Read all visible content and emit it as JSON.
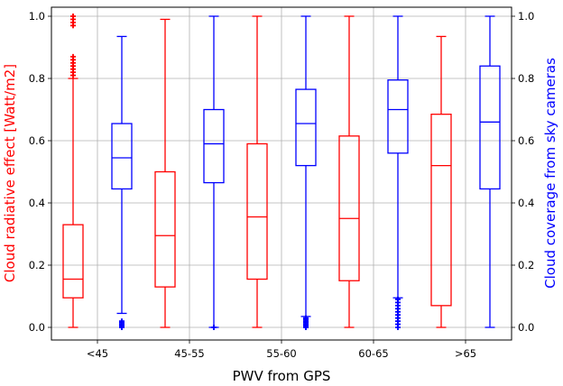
{
  "chart_data": {
    "type": "boxplot",
    "categories": [
      "<45",
      "45-55",
      "55-60",
      "60-65",
      ">65"
    ],
    "xlabel": "PWV from GPS",
    "ylabel_left": "Cloud radiative effect [Watt/m2]",
    "ylabel_right": "Cloud coverage from sky cameras",
    "ylim": [
      0,
      1
    ],
    "yticks": [
      0.0,
      0.2,
      0.4,
      0.6,
      0.8,
      1.0
    ],
    "ytick_labels": [
      "0.0",
      "0.2",
      "0.4",
      "0.6",
      "0.8",
      "1.0"
    ],
    "grid": true,
    "series": [
      {
        "name": "Cloud radiative effect [Watt/m2]",
        "color": "#ff0000",
        "boxes": [
          {
            "whisker_low": 0.0,
            "q1": 0.095,
            "median": 0.155,
            "q3": 0.33,
            "whisker_high": 0.8,
            "outliers": [
              0.81,
              0.82,
              0.83,
              0.84,
              0.85,
              0.86,
              0.87,
              0.97,
              0.98,
              0.99,
              1.0
            ]
          },
          {
            "whisker_low": 0.0,
            "q1": 0.13,
            "median": 0.295,
            "q3": 0.5,
            "whisker_high": 0.99,
            "outliers": []
          },
          {
            "whisker_low": 0.0,
            "q1": 0.155,
            "median": 0.355,
            "q3": 0.59,
            "whisker_high": 1.0,
            "outliers": []
          },
          {
            "whisker_low": 0.0,
            "q1": 0.15,
            "median": 0.35,
            "q3": 0.615,
            "whisker_high": 1.0,
            "outliers": []
          },
          {
            "whisker_low": 0.0,
            "q1": 0.07,
            "median": 0.52,
            "q3": 0.685,
            "whisker_high": 0.935,
            "outliers": []
          }
        ]
      },
      {
        "name": "Cloud coverage from sky cameras",
        "color": "#0000ff",
        "boxes": [
          {
            "whisker_low": 0.045,
            "q1": 0.445,
            "median": 0.545,
            "q3": 0.655,
            "whisker_high": 0.935,
            "outliers": [
              0.0,
              0.005,
              0.01,
              0.015,
              0.02
            ]
          },
          {
            "whisker_low": 0.0,
            "q1": 0.465,
            "median": 0.59,
            "q3": 0.7,
            "whisker_high": 1.0,
            "outliers": [
              0.0
            ]
          },
          {
            "whisker_low": 0.035,
            "q1": 0.52,
            "median": 0.655,
            "q3": 0.765,
            "whisker_high": 1.0,
            "outliers": [
              0.0,
              0.005,
              0.01,
              0.015,
              0.02,
              0.025,
              0.03
            ]
          },
          {
            "whisker_low": 0.095,
            "q1": 0.56,
            "median": 0.7,
            "q3": 0.795,
            "whisker_high": 1.0,
            "outliers": [
              0.0,
              0.01,
              0.02,
              0.03,
              0.04,
              0.05,
              0.06,
              0.07,
              0.08,
              0.09
            ]
          },
          {
            "whisker_low": 0.0,
            "q1": 0.445,
            "median": 0.66,
            "q3": 0.84,
            "whisker_high": 1.0,
            "outliers": []
          }
        ]
      }
    ]
  }
}
